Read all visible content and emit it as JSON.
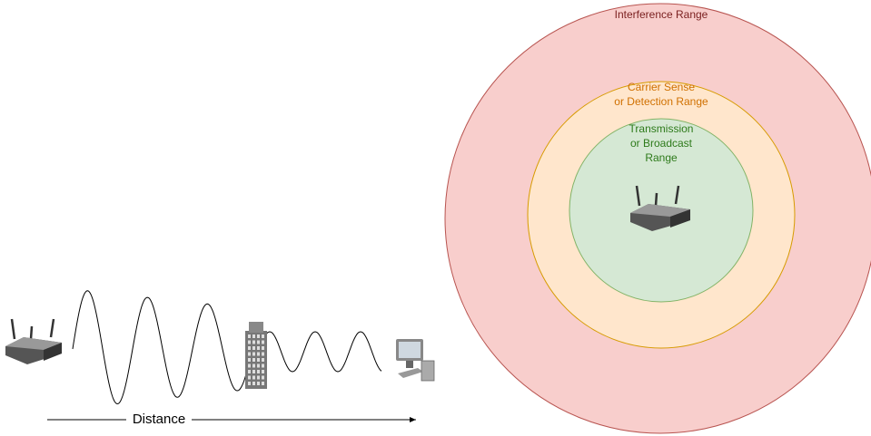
{
  "labels": {
    "interference": "Interference Range",
    "carrier_sense": [
      "Carrier Sense",
      "or Detection Range"
    ],
    "transmission": [
      "Transmission",
      "or Broadcast",
      "Range"
    ],
    "distance": "Distance"
  }
}
